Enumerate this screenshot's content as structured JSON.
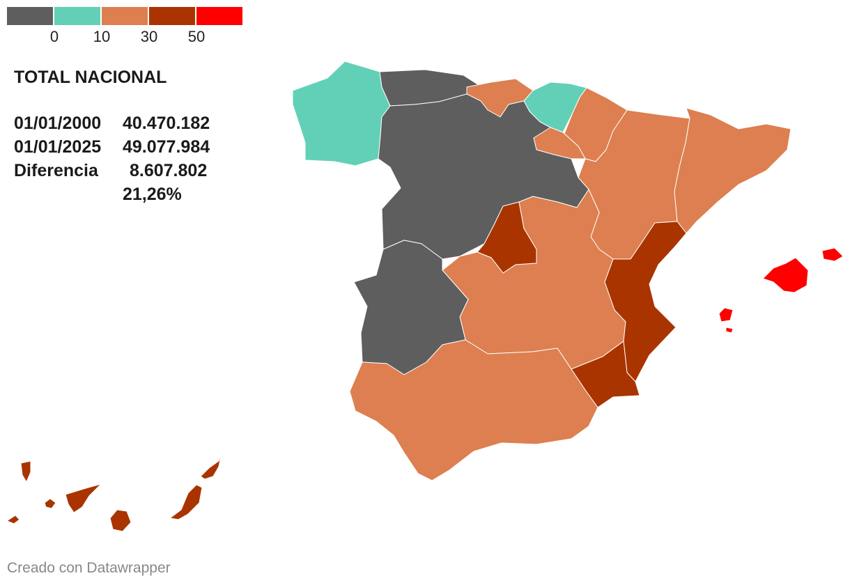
{
  "legend": {
    "colors": [
      "#5e5e5e",
      "#62d0b6",
      "#dd7f50",
      "#a93400",
      "#ff0000"
    ],
    "ticks": [
      "0",
      "10",
      "30",
      "50"
    ]
  },
  "info": {
    "title": "TOTAL NACIONAL",
    "row1_key": "01/01/2000",
    "row1_val": "40.470.182",
    "row2_key": "01/01/2025",
    "row2_val": "49.077.984",
    "row3_key": "Diferencia",
    "row3_val": "8.607.802",
    "row4_val": "21,26%"
  },
  "regions": [
    {
      "name": "Galicia",
      "bin": "0-10",
      "color": "#62d0b6"
    },
    {
      "name": "Asturias",
      "bin": "<0",
      "color": "#5e5e5e"
    },
    {
      "name": "Cantabria",
      "bin": "10-30",
      "color": "#dd7f50"
    },
    {
      "name": "País Vasco",
      "bin": "0-10",
      "color": "#62d0b6"
    },
    {
      "name": "Navarra",
      "bin": "10-30",
      "color": "#dd7f50"
    },
    {
      "name": "La Rioja",
      "bin": "10-30",
      "color": "#dd7f50"
    },
    {
      "name": "Aragón",
      "bin": "10-30",
      "color": "#dd7f50"
    },
    {
      "name": "Cataluña",
      "bin": "10-30",
      "color": "#dd7f50"
    },
    {
      "name": "Castilla y León",
      "bin": "<0",
      "color": "#5e5e5e"
    },
    {
      "name": "Madrid",
      "bin": "30-50",
      "color": "#a93400"
    },
    {
      "name": "Castilla-La Mancha",
      "bin": "10-30",
      "color": "#dd7f50"
    },
    {
      "name": "Extremadura",
      "bin": "<0",
      "color": "#5e5e5e"
    },
    {
      "name": "Comunitat Valenciana",
      "bin": "30-50",
      "color": "#a93400"
    },
    {
      "name": "Murcia",
      "bin": "30-50",
      "color": "#a93400"
    },
    {
      "name": "Andalucía",
      "bin": "10-30",
      "color": "#dd7f50"
    },
    {
      "name": "Illes Balears",
      "bin": ">50",
      "color": "#ff0000"
    },
    {
      "name": "Canarias",
      "bin": "30-50",
      "color": "#a93400"
    }
  ],
  "credit": "Creado con Datawrapper"
}
